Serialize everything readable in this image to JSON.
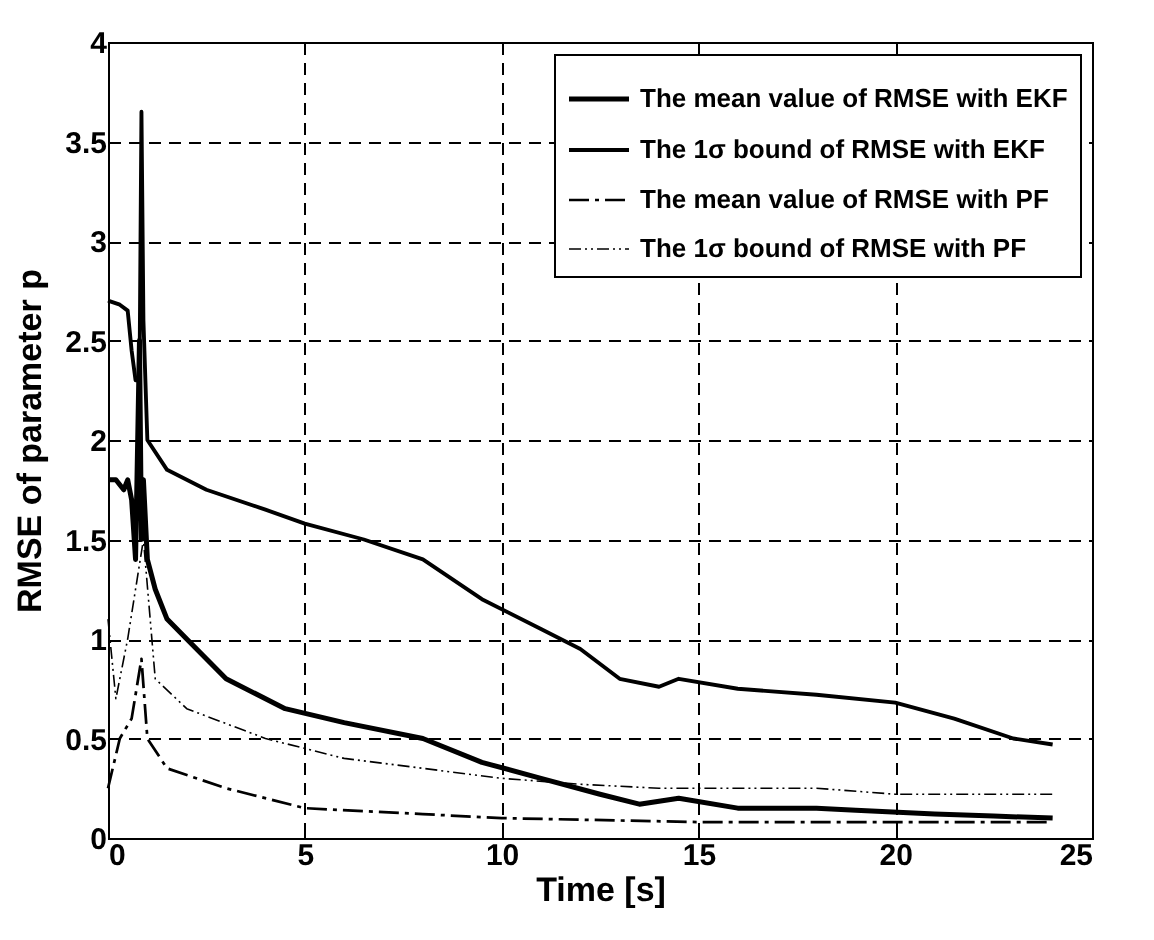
{
  "chart_data": {
    "type": "line",
    "xlabel": "Time [s]",
    "ylabel": "RMSE of parameter p",
    "xlim": [
      0,
      25
    ],
    "ylim": [
      0,
      4
    ],
    "xticks": [
      0,
      5,
      10,
      15,
      20,
      25
    ],
    "yticks": [
      0,
      0.5,
      1,
      1.5,
      2,
      2.5,
      3,
      3.5,
      4
    ],
    "grid": true,
    "legend": "top right",
    "marker": "none",
    "series": [
      {
        "name": "The mean value of RMSE with EKF",
        "color": "#000000",
        "line_style": "solid",
        "x": [
          0,
          0.2,
          0.4,
          0.5,
          0.6,
          0.7,
          0.8,
          0.85,
          0.9,
          1.0,
          1.2,
          1.5,
          2,
          3,
          4.5,
          6,
          8,
          9.5,
          11,
          12.5,
          13.5,
          14.5,
          16,
          18,
          19,
          21,
          22.5,
          24
        ],
        "values": [
          1.8,
          1.8,
          1.75,
          1.8,
          1.7,
          1.4,
          2.5,
          1.5,
          1.8,
          1.4,
          1.25,
          1.1,
          1.0,
          0.8,
          0.65,
          0.58,
          0.5,
          0.38,
          0.3,
          0.22,
          0.17,
          0.2,
          0.15,
          0.15,
          0.14,
          0.12,
          0.11,
          0.1
        ]
      },
      {
        "name": "The 1σ bound of  RMSE with EKF",
        "color": "#000000",
        "line_style": "solid",
        "x": [
          0,
          0.3,
          0.5,
          0.6,
          0.7,
          0.8,
          0.85,
          0.9,
          1.0,
          1.5,
          2.5,
          4,
          5,
          6.5,
          8,
          9.5,
          11,
          12,
          13,
          14,
          14.5,
          16,
          18,
          20,
          21.5,
          23,
          24
        ],
        "values": [
          2.7,
          2.68,
          2.65,
          2.45,
          2.3,
          2.3,
          3.65,
          2.6,
          2.0,
          1.85,
          1.75,
          1.65,
          1.58,
          1.5,
          1.4,
          1.2,
          1.05,
          0.95,
          0.8,
          0.76,
          0.8,
          0.75,
          0.72,
          0.68,
          0.6,
          0.5,
          0.47
        ]
      },
      {
        "name": "The mean value of RMSE with PF",
        "color": "#000000",
        "line_style": "dashed",
        "x": [
          0,
          0.3,
          0.6,
          0.85,
          1.0,
          1.5,
          3,
          5,
          8,
          10,
          15,
          20,
          24
        ],
        "values": [
          0.25,
          0.5,
          0.6,
          0.9,
          0.5,
          0.35,
          0.25,
          0.15,
          0.12,
          0.1,
          0.08,
          0.08,
          0.08
        ]
      },
      {
        "name": "The 1σ bound of  RMSE with PF",
        "color": "#000000",
        "line_style": "dotted",
        "x": [
          0,
          0.2,
          0.5,
          0.9,
          1.2,
          2,
          4,
          6,
          8,
          10,
          12,
          14,
          18,
          20,
          24
        ],
        "values": [
          1.1,
          0.7,
          1.0,
          1.5,
          0.8,
          0.65,
          0.5,
          0.4,
          0.35,
          0.3,
          0.27,
          0.25,
          0.25,
          0.22,
          0.22
        ]
      }
    ]
  }
}
